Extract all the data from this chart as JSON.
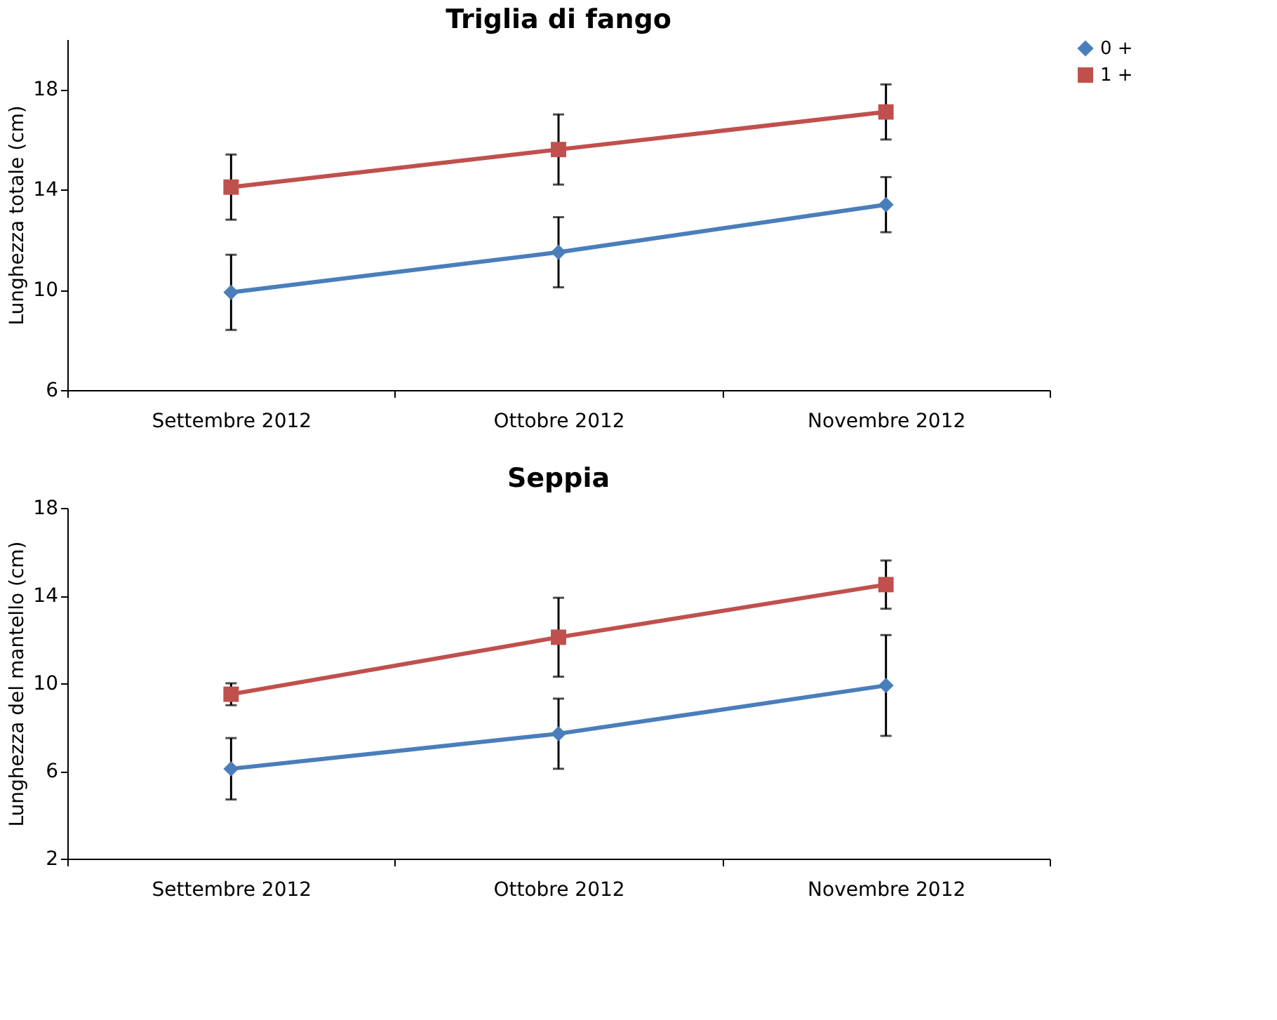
{
  "chart_data": [
    {
      "type": "line",
      "title": "Triglia di fango",
      "ylabel": "Lunghezza totale (cm)",
      "categories": [
        "Settembre 2012",
        "Ottobre 2012",
        "Novembre 2012"
      ],
      "series": [
        {
          "name": "0 +",
          "color": "#4a7ebb",
          "marker": "diamond",
          "values": [
            9.9,
            11.5,
            13.4
          ],
          "errors": [
            1.5,
            1.4,
            1.1
          ]
        },
        {
          "name": "1 +",
          "color": "#c0504d",
          "marker": "square",
          "values": [
            14.1,
            15.6,
            17.1
          ],
          "errors": [
            1.3,
            1.4,
            1.1
          ]
        }
      ],
      "ylim": [
        6,
        20
      ],
      "yticks": [
        6,
        10,
        14,
        18
      ],
      "legend": "right",
      "grid": false
    },
    {
      "type": "line",
      "title": "Seppia",
      "ylabel": "Lunghezza del mantello (cm)",
      "categories": [
        "Settembre 2012",
        "Ottobre 2012",
        "Novembre 2012"
      ],
      "series": [
        {
          "name": "0 +",
          "color": "#4a7ebb",
          "marker": "diamond",
          "values": [
            6.1,
            7.7,
            9.9
          ],
          "errors": [
            1.4,
            1.6,
            2.3
          ]
        },
        {
          "name": "1 +",
          "color": "#c0504d",
          "marker": "square",
          "values": [
            9.5,
            12.1,
            14.5
          ],
          "errors": [
            0.5,
            1.8,
            1.1
          ]
        }
      ],
      "ylim": [
        2,
        18
      ],
      "yticks": [
        2,
        6,
        10,
        14,
        18
      ],
      "legend": "right",
      "grid": false
    }
  ]
}
